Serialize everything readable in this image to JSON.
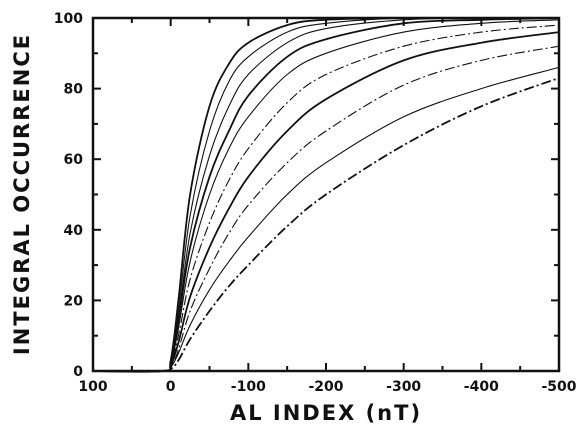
{
  "chart_data": {
    "type": "line",
    "title": "",
    "xlabel": "AL INDEX (nT)",
    "ylabel": "INTEGRAL OCCURRENCE",
    "x_axis_reversed": true,
    "xlim": [
      100,
      -500
    ],
    "ylim": [
      0,
      100
    ],
    "x_ticks": [
      "100",
      "0",
      "-100",
      "-200",
      "-300",
      "-400",
      "-500"
    ],
    "y_ticks": [
      "0",
      "20",
      "40",
      "60",
      "80",
      "100"
    ],
    "grid": false,
    "legend": "none",
    "line_color": "#111111",
    "series": [
      {
        "x": [
          100,
          10,
          0,
          -10,
          -25,
          -50,
          -75,
          -100,
          -150,
          -200,
          -300,
          -400,
          -500
        ],
        "y": [
          0,
          0,
          3,
          20,
          50,
          75,
          87,
          93,
          98,
          99.5,
          100,
          100,
          100
        ],
        "style": "solid"
      },
      {
        "x": [
          100,
          10,
          0,
          -10,
          -25,
          -50,
          -75,
          -100,
          -150,
          -200,
          -300,
          -400,
          -500
        ],
        "y": [
          0,
          0,
          3,
          17,
          44,
          68,
          82,
          89,
          96,
          98.5,
          100,
          100,
          100
        ],
        "style": "solid"
      },
      {
        "x": [
          100,
          10,
          0,
          -10,
          -25,
          -50,
          -75,
          -100,
          -150,
          -200,
          -300,
          -400,
          -500
        ],
        "y": [
          0,
          0,
          3,
          15,
          39,
          61,
          75,
          84,
          93,
          97,
          99.5,
          100,
          100
        ],
        "style": "solid"
      },
      {
        "x": [
          100,
          10,
          0,
          -10,
          -25,
          -50,
          -75,
          -100,
          -150,
          -200,
          -300,
          -400,
          -500
        ],
        "y": [
          0,
          0,
          2,
          14,
          35,
          55,
          68,
          78,
          89,
          94,
          98.5,
          99.5,
          100
        ],
        "style": "solid"
      },
      {
        "x": [
          100,
          10,
          0,
          -10,
          -25,
          -50,
          -75,
          -100,
          -150,
          -200,
          -300,
          -400,
          -500
        ],
        "y": [
          0,
          0,
          2,
          12,
          31,
          50,
          63,
          72,
          84,
          90,
          96,
          98.5,
          99.5
        ],
        "style": "solid"
      },
      {
        "x": [
          100,
          10,
          0,
          -10,
          -25,
          -50,
          -75,
          -100,
          -150,
          -200,
          -300,
          -400,
          -500
        ],
        "y": [
          0,
          0,
          2,
          10,
          26,
          42,
          54,
          63,
          76,
          84,
          92,
          96,
          98
        ],
        "style": "dashed"
      },
      {
        "x": [
          100,
          10,
          0,
          -10,
          -25,
          -50,
          -75,
          -100,
          -150,
          -200,
          -300,
          -400,
          -500
        ],
        "y": [
          0,
          0,
          1.5,
          8,
          21,
          35,
          46,
          55,
          68,
          77,
          88,
          93,
          96
        ],
        "style": "solid"
      },
      {
        "x": [
          100,
          10,
          0,
          -10,
          -25,
          -50,
          -75,
          -100,
          -150,
          -200,
          -300,
          -400,
          -500
        ],
        "y": [
          0,
          0,
          1,
          6,
          17,
          29,
          39,
          47,
          59,
          68,
          81,
          88,
          92
        ],
        "style": "dashed"
      },
      {
        "x": [
          100,
          10,
          0,
          -10,
          -25,
          -50,
          -75,
          -100,
          -150,
          -200,
          -300,
          -400,
          -500
        ],
        "y": [
          0,
          0,
          1,
          5,
          13,
          23,
          31,
          38,
          50,
          59,
          72,
          80,
          86
        ],
        "style": "solid"
      },
      {
        "x": [
          100,
          10,
          0,
          -10,
          -25,
          -50,
          -75,
          -100,
          -150,
          -200,
          -300,
          -400,
          -500
        ],
        "y": [
          0,
          0,
          0.5,
          3,
          9,
          17,
          24,
          30,
          41,
          50,
          64,
          75,
          83
        ],
        "style": "dashed"
      }
    ]
  }
}
